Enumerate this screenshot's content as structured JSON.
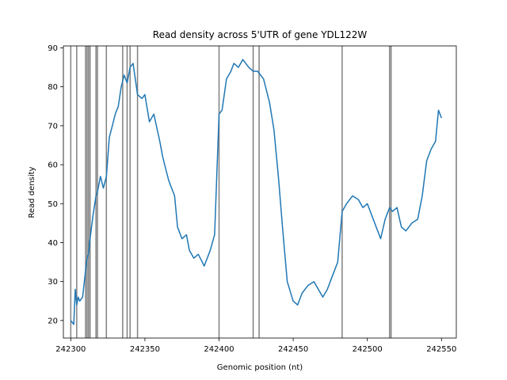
{
  "chart_data": {
    "type": "line",
    "title": "Read density across 5'UTR of gene YDL122W",
    "xlabel": "Genomic position (nt)",
    "ylabel": "Read density",
    "xlim": [
      242295,
      242560
    ],
    "ylim": [
      15.5,
      90.5
    ],
    "xticks": [
      242300,
      242350,
      242400,
      242450,
      242500,
      242550
    ],
    "yticks": [
      20,
      30,
      40,
      50,
      60,
      70,
      80,
      90
    ],
    "line_color": "#1f77b4",
    "vline_color": "#808080",
    "vlines": [
      242300,
      242304,
      242310,
      242311,
      242312,
      242313,
      242317,
      242318,
      242324,
      242335,
      242338,
      242340,
      242345,
      242400,
      242423,
      242427,
      242483,
      242515,
      242516
    ],
    "series": [
      {
        "x": [
          242300,
          242302,
          242303,
          242304,
          242305,
          242306,
          242308,
          242310,
          242311,
          242312,
          242313,
          242315,
          242317,
          242318,
          242320,
          242322,
          242324,
          242326,
          242328,
          242330,
          242332,
          242334,
          242336,
          242338,
          242340,
          242342,
          242345,
          242348,
          242350,
          242353,
          242356,
          242360,
          242362,
          242364,
          242366,
          242368,
          242370,
          242372,
          242375,
          242378,
          242380,
          242383,
          242386,
          242390,
          242392,
          242394,
          242397,
          242400,
          242402,
          242405,
          242408,
          242410,
          242413,
          242416,
          242420,
          242423,
          242426,
          242430,
          242434,
          242437,
          242440,
          242443,
          242446,
          242450,
          242453,
          242456,
          242460,
          242464,
          242467,
          242470,
          242473,
          242476,
          242480,
          242483,
          242486,
          242490,
          242494,
          242497,
          242500,
          242503,
          242506,
          242509,
          242512,
          242515,
          242517,
          242520,
          242523,
          242526,
          242530,
          242534,
          242537,
          242540,
          242543,
          242546,
          242548,
          242550
        ],
        "values": [
          20,
          19,
          28,
          24,
          26,
          25,
          26,
          33,
          36,
          37,
          41,
          47,
          52,
          53,
          57,
          54,
          57,
          67,
          70,
          73,
          75,
          80,
          83,
          81,
          85,
          86,
          78,
          77,
          78,
          71,
          73,
          66,
          62,
          59,
          56,
          54,
          52,
          44,
          41,
          42,
          38,
          36,
          37,
          34,
          36,
          38,
          42,
          73,
          74,
          82,
          84,
          86,
          85,
          87,
          85,
          84,
          84,
          82,
          76,
          69,
          57,
          43,
          30,
          25,
          24,
          27,
          29,
          30,
          28,
          26,
          28,
          31,
          35,
          48,
          50,
          52,
          51,
          49,
          50,
          47,
          44,
          41,
          46,
          49,
          48,
          49,
          44,
          43,
          45,
          46,
          52,
          61,
          64,
          66,
          74,
          72
        ]
      }
    ]
  }
}
